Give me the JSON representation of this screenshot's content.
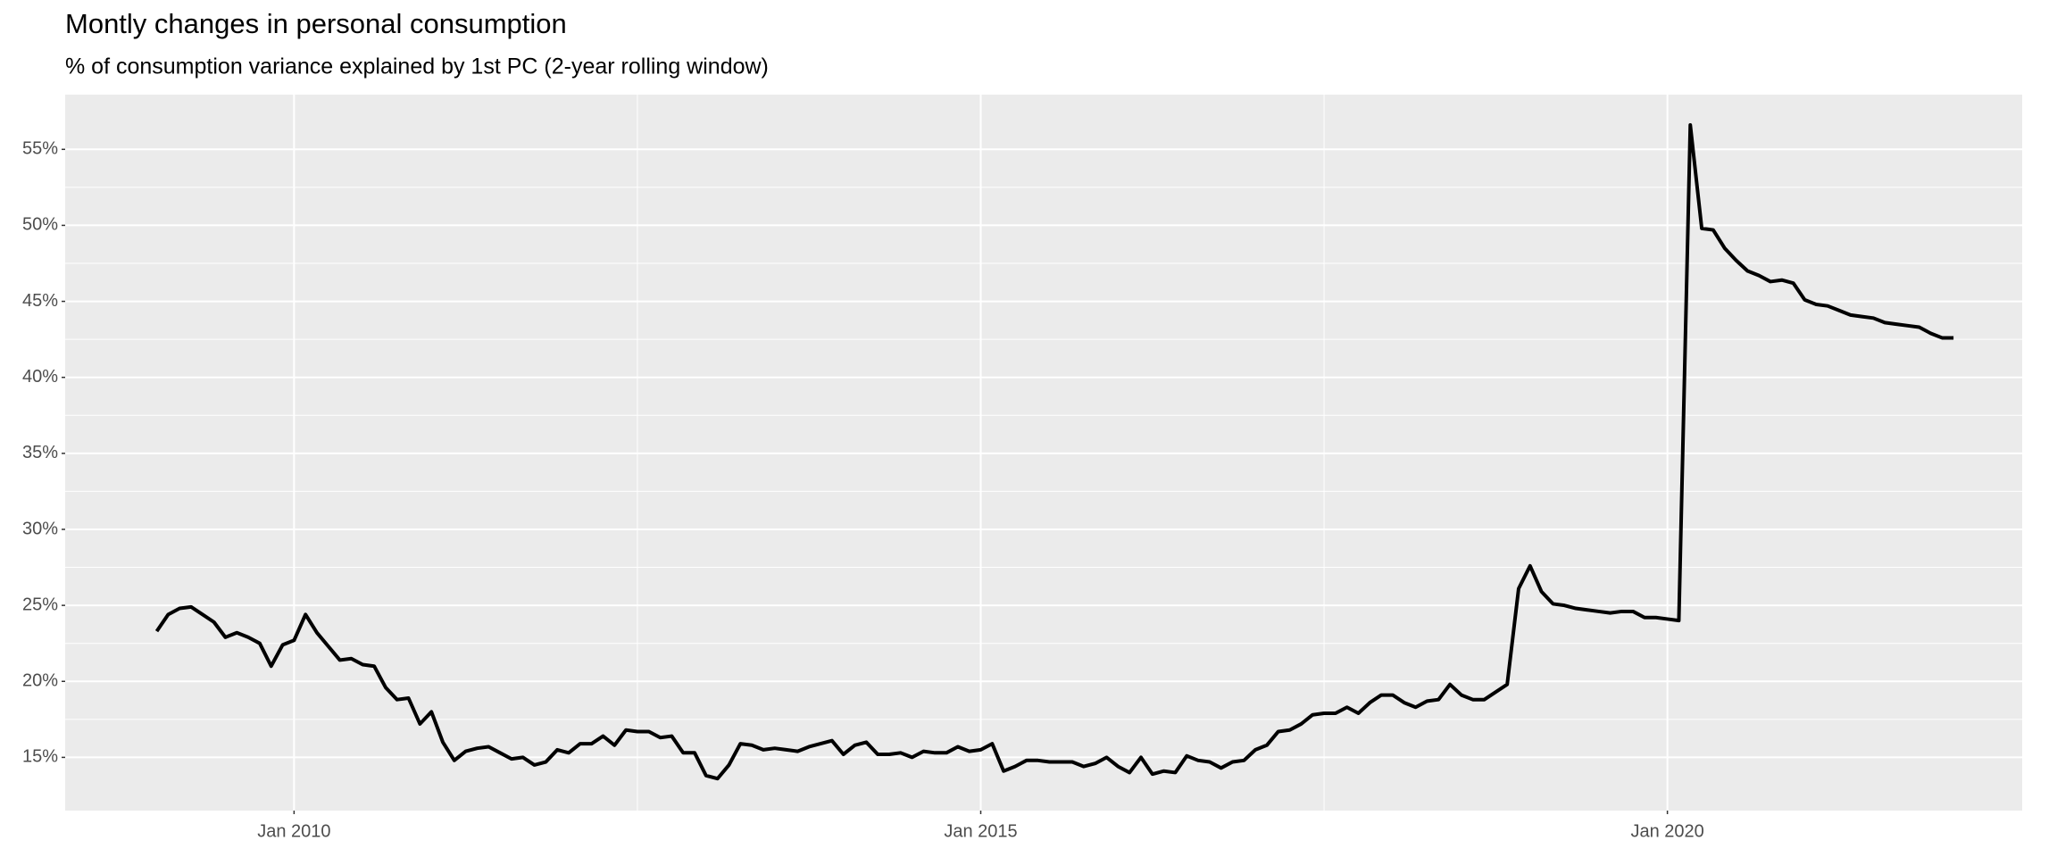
{
  "chart_data": {
    "type": "line",
    "title": "Montly changes in personal consumption",
    "subtitle": "% of consumption variance explained by 1st PC (2-year rolling window)",
    "x": [
      "2009-01",
      "2009-02",
      "2009-03",
      "2009-04",
      "2009-05",
      "2009-06",
      "2009-07",
      "2009-08",
      "2009-09",
      "2009-10",
      "2009-11",
      "2009-12",
      "2010-01",
      "2010-02",
      "2010-03",
      "2010-04",
      "2010-05",
      "2010-06",
      "2010-07",
      "2010-08",
      "2010-09",
      "2010-10",
      "2010-11",
      "2010-12",
      "2011-01",
      "2011-02",
      "2011-03",
      "2011-04",
      "2011-05",
      "2011-06",
      "2011-07",
      "2011-08",
      "2011-09",
      "2011-10",
      "2011-11",
      "2011-12",
      "2012-01",
      "2012-02",
      "2012-03",
      "2012-04",
      "2012-05",
      "2012-06",
      "2012-07",
      "2012-08",
      "2012-09",
      "2012-10",
      "2012-11",
      "2012-12",
      "2013-01",
      "2013-02",
      "2013-03",
      "2013-04",
      "2013-05",
      "2013-06",
      "2013-07",
      "2013-08",
      "2013-09",
      "2013-10",
      "2013-11",
      "2013-12",
      "2014-01",
      "2014-02",
      "2014-03",
      "2014-04",
      "2014-05",
      "2014-06",
      "2014-07",
      "2014-08",
      "2014-09",
      "2014-10",
      "2014-11",
      "2014-12",
      "2015-01",
      "2015-02",
      "2015-03",
      "2015-04",
      "2015-05",
      "2015-06",
      "2015-07",
      "2015-08",
      "2015-09",
      "2015-10",
      "2015-11",
      "2015-12",
      "2016-01",
      "2016-02",
      "2016-03",
      "2016-04",
      "2016-05",
      "2016-06",
      "2016-07",
      "2016-08",
      "2016-09",
      "2016-10",
      "2016-11",
      "2016-12",
      "2017-01",
      "2017-02",
      "2017-03",
      "2017-04",
      "2017-05",
      "2017-06",
      "2017-07",
      "2017-08",
      "2017-09",
      "2017-10",
      "2017-11",
      "2017-12",
      "2018-01",
      "2018-02",
      "2018-03",
      "2018-04",
      "2018-05",
      "2018-06",
      "2018-07",
      "2018-08",
      "2018-09",
      "2018-10",
      "2018-11",
      "2018-12",
      "2019-01",
      "2019-02",
      "2019-03",
      "2019-04",
      "2019-05",
      "2019-06",
      "2019-07",
      "2019-08",
      "2019-09",
      "2019-10",
      "2019-11",
      "2019-12",
      "2020-01",
      "2020-02",
      "2020-03",
      "2020-04",
      "2020-05",
      "2020-06",
      "2020-07",
      "2020-08",
      "2020-09",
      "2020-10",
      "2020-11",
      "2020-12",
      "2021-01",
      "2021-02",
      "2021-03",
      "2021-04",
      "2021-05",
      "2021-06",
      "2021-07",
      "2021-08",
      "2021-09",
      "2021-10",
      "2021-11",
      "2021-12",
      "2022-01",
      "2022-02"
    ],
    "values": [
      23.3,
      24.4,
      24.8,
      24.9,
      24.4,
      23.9,
      22.9,
      23.2,
      22.9,
      22.5,
      21.0,
      22.4,
      22.7,
      24.4,
      23.2,
      22.3,
      21.4,
      21.5,
      21.1,
      21.0,
      19.6,
      18.8,
      18.9,
      17.2,
      18.0,
      16.0,
      14.8,
      15.4,
      15.6,
      15.7,
      15.3,
      14.9,
      15.0,
      14.5,
      14.7,
      15.5,
      15.3,
      15.9,
      15.9,
      16.4,
      15.8,
      16.8,
      16.7,
      16.7,
      16.3,
      16.4,
      15.3,
      15.3,
      13.8,
      13.6,
      14.5,
      15.9,
      15.8,
      15.5,
      15.6,
      15.5,
      15.4,
      15.7,
      15.9,
      16.1,
      15.2,
      15.8,
      16.0,
      15.2,
      15.2,
      15.3,
      15.0,
      15.4,
      15.3,
      15.3,
      15.7,
      15.4,
      15.5,
      15.9,
      14.1,
      14.4,
      14.8,
      14.8,
      14.7,
      14.7,
      14.7,
      14.4,
      14.6,
      15.0,
      14.4,
      14.0,
      15.0,
      13.9,
      14.1,
      14.0,
      15.1,
      14.8,
      14.7,
      14.3,
      14.7,
      14.8,
      15.5,
      15.8,
      16.7,
      16.8,
      17.2,
      17.8,
      17.9,
      17.9,
      18.3,
      17.9,
      18.6,
      19.1,
      19.1,
      18.6,
      18.3,
      18.7,
      18.8,
      19.8,
      19.1,
      18.8,
      18.8,
      19.3,
      19.8,
      26.1,
      27.6,
      25.9,
      25.1,
      25.0,
      24.8,
      24.7,
      24.6,
      24.5,
      24.6,
      24.6,
      24.2,
      24.2,
      24.1,
      24.0,
      56.6,
      49.8,
      49.7,
      48.5,
      47.7,
      47.0,
      46.7,
      46.3,
      46.4,
      46.2,
      45.1,
      44.8,
      44.7,
      44.4,
      44.1,
      44.0,
      43.9,
      43.6,
      43.5,
      43.4,
      43.3,
      42.9,
      42.6,
      42.6
    ],
    "color": "#000000",
    "xlim": [
      "2008-05",
      "2022-08"
    ],
    "xticks": [
      {
        "value": "2010-01",
        "label": "Jan 2010"
      },
      {
        "value": "2015-01",
        "label": "Jan 2015"
      },
      {
        "value": "2020-01",
        "label": "Jan 2020"
      }
    ],
    "ylim": [
      11.5,
      58.6
    ],
    "yticks": [
      {
        "value": 15,
        "label": "15%"
      },
      {
        "value": 20,
        "label": "20%"
      },
      {
        "value": 25,
        "label": "25%"
      },
      {
        "value": 30,
        "label": "30%"
      },
      {
        "value": 35,
        "label": "35%"
      },
      {
        "value": 40,
        "label": "40%"
      },
      {
        "value": 45,
        "label": "45%"
      },
      {
        "value": 50,
        "label": "50%"
      },
      {
        "value": 55,
        "label": "55%"
      }
    ],
    "grid": true
  }
}
